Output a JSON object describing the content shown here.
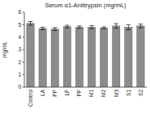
{
  "chart_data": {
    "type": "bar",
    "title": "Serum α1-Antitrypsin (mg/mL)",
    "y_label": "mg/mL",
    "categories": [
      "Control",
      "LA",
      "PP",
      "LF",
      "PF",
      "M1",
      "M2",
      "M3",
      "S1",
      "S2"
    ],
    "values": [
      5.1,
      4.7,
      4.65,
      4.85,
      4.8,
      4.8,
      4.75,
      4.9,
      4.8,
      4.9
    ],
    "errors": [
      0.15,
      0.1,
      0.12,
      0.1,
      0.1,
      0.12,
      0.08,
      0.18,
      0.2,
      0.15
    ],
    "color": "#8c8c8c",
    "ylim": [
      0,
      6
    ],
    "yticks": [
      0,
      1,
      2,
      3,
      4,
      5,
      6
    ],
    "grid": false
  }
}
